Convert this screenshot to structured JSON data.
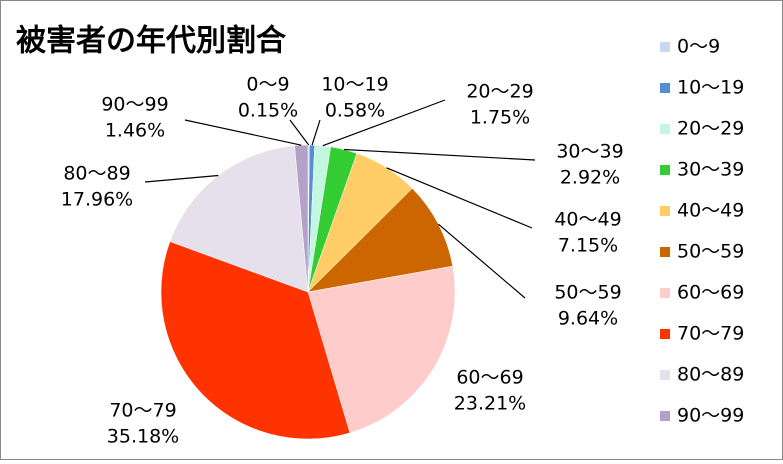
{
  "chart_data": {
    "type": "pie",
    "title": "被害者の年代別割合",
    "categories": [
      "0～9",
      "10～19",
      "20～29",
      "30～39",
      "40～49",
      "50～59",
      "60～69",
      "70～79",
      "80～89",
      "90～99"
    ],
    "values": [
      0.15,
      0.58,
      1.75,
      2.92,
      7.15,
      9.64,
      23.21,
      35.18,
      17.96,
      1.46
    ],
    "value_labels": [
      "0.15%",
      "0.58%",
      "1.75%",
      "2.92%",
      "7.15%",
      "9.64%",
      "23.21%",
      "35.18%",
      "17.96%",
      "1.46%"
    ],
    "colors": [
      "#c6d9f1",
      "#558ed5",
      "#c4f7df",
      "#33cc33",
      "#ffcc66",
      "#cc6600",
      "#ffcccc",
      "#ff3300",
      "#e6e0ec",
      "#b3a2c7"
    ],
    "legend": "right"
  }
}
